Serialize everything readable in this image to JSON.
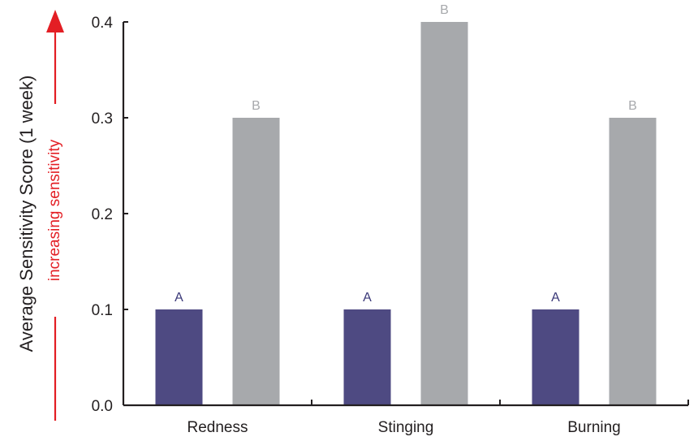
{
  "chart_data": {
    "type": "bar",
    "categories": [
      "Redness",
      "Stinging",
      "Burning"
    ],
    "series": [
      {
        "values": [
          0.1,
          0.1,
          0.1
        ],
        "labels": [
          "A",
          "A",
          "A"
        ],
        "color": "#4e4a82",
        "label_color": "#3a3878"
      },
      {
        "values": [
          0.3,
          0.4,
          0.3
        ],
        "labels": [
          "B",
          "B",
          "B"
        ],
        "color": "#a7a9ac",
        "label_color": "#a7a9ac"
      }
    ],
    "ylabel": "Average Sensitivity Score (1 week)",
    "ylim": [
      0,
      0.4
    ],
    "yticks": [
      "0.0",
      "0.1",
      "0.2",
      "0.3",
      "0.4"
    ],
    "ytick_values": [
      0,
      0.1,
      0.2,
      0.3,
      0.4
    ],
    "annotation": "increasing sensitivity",
    "annotation_color": "#e31e24",
    "axis_color": "#231f20",
    "grid": false
  }
}
